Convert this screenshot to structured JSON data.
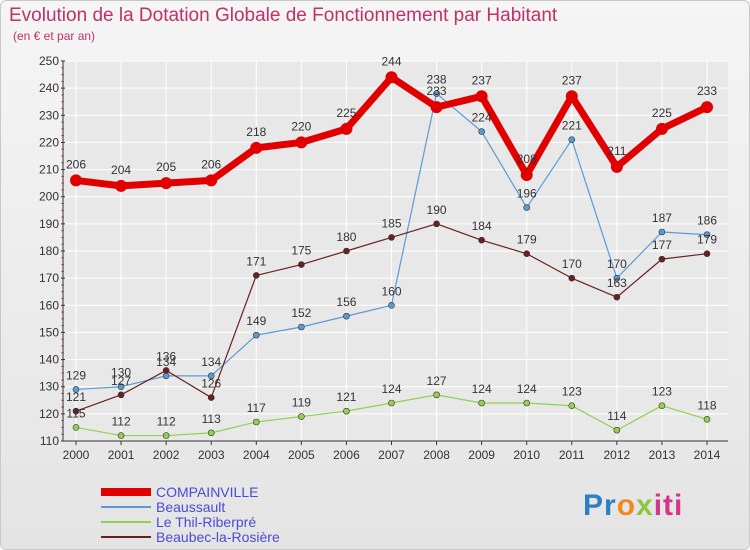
{
  "title": "Evolution de la Dotation Globale de Fonctionnement par Habitant",
  "subtitle": "(en € et par an)",
  "logo": {
    "part1": "Pr",
    "part2": "o",
    "part3": "x",
    "part4": "iti"
  },
  "colors": {
    "compainville": "#e00000",
    "beaussault": "#5a9bd5",
    "thil": "#92d050",
    "beaubec": "#6b2020",
    "axis": "#333333",
    "grid": "#ffffff",
    "tick_minor": "#e06080"
  },
  "chart_data": {
    "type": "line",
    "x": [
      "2000",
      "2001",
      "2002",
      "2003",
      "2004",
      "2005",
      "2006",
      "2007",
      "2008",
      "2009",
      "2010",
      "2011",
      "2012",
      "2013",
      "2014"
    ],
    "ylim": [
      110,
      250
    ],
    "yticks": [
      "110",
      "120",
      "130",
      "140",
      "150",
      "160",
      "170",
      "180",
      "190",
      "200",
      "210",
      "220",
      "230",
      "240",
      "250"
    ],
    "grid": true,
    "legend_position": "bottom-left",
    "series": [
      {
        "name": "COMPAINVILLE",
        "color": "#e00000",
        "values": [
          206,
          204,
          205,
          206,
          218,
          220,
          225,
          244,
          233,
          237,
          208,
          237,
          211,
          225,
          233
        ],
        "labels": [
          "206",
          "204",
          "205",
          "206",
          "218",
          "220",
          "225",
          "244",
          "233",
          "237",
          "208",
          "237",
          "211",
          "225",
          "233"
        ]
      },
      {
        "name": "Beaussault",
        "color": "#5a9bd5",
        "values": [
          129,
          130,
          134,
          134,
          149,
          152,
          156,
          160,
          238,
          224,
          196,
          221,
          170,
          187,
          186
        ],
        "labels": [
          "129",
          "130",
          "134",
          "134",
          "149",
          "152",
          "156",
          "160",
          "238",
          "224",
          "196",
          "221",
          "170",
          "187",
          "186"
        ]
      },
      {
        "name": "Le Thil-Riberpré",
        "color": "#92d050",
        "values": [
          115,
          112,
          112,
          113,
          117,
          119,
          121,
          124,
          127,
          124,
          124,
          123,
          114,
          123,
          118
        ],
        "labels": [
          "115",
          "112",
          "112",
          "113",
          "117",
          "119",
          "121",
          "124",
          "127",
          "124",
          "124",
          "123",
          "114",
          "123",
          "118"
        ]
      },
      {
        "name": "Beaubec-la-Rosière",
        "color": "#6b2020",
        "values": [
          121,
          127,
          136,
          126,
          171,
          175,
          180,
          185,
          190,
          184,
          179,
          170,
          163,
          177,
          179
        ],
        "labels": [
          "121",
          "127",
          "136",
          "126",
          "171",
          "175",
          "180",
          "185",
          "190",
          "184",
          "179",
          "170",
          "163",
          "177",
          "179"
        ]
      }
    ]
  }
}
